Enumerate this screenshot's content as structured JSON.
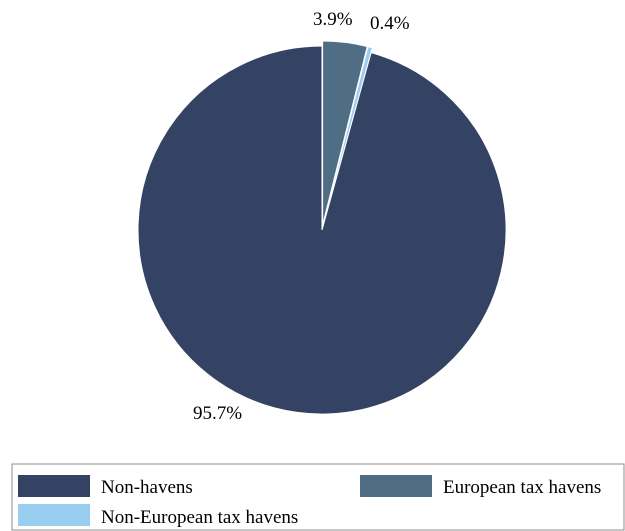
{
  "chart_data": {
    "type": "pie",
    "title": "",
    "series": [
      {
        "name": "Non-havens",
        "value": 95.7,
        "label": "95.7%",
        "color": "#344263"
      },
      {
        "name": "European tax havens",
        "value": 3.9,
        "label": "3.9%",
        "color": "#4F6D85"
      },
      {
        "name": "Non-European tax havens",
        "value": 0.4,
        "label": "0.4%",
        "color": "#9ACEF0"
      }
    ],
    "start_angle_deg": 0,
    "direction": "clockwise",
    "exploded_slices": [
      "European tax havens",
      "Non-European tax havens"
    ],
    "legend": {
      "placement": "bottom",
      "entries": [
        "Non-havens",
        "European tax havens",
        "Non-European tax havens"
      ]
    }
  }
}
